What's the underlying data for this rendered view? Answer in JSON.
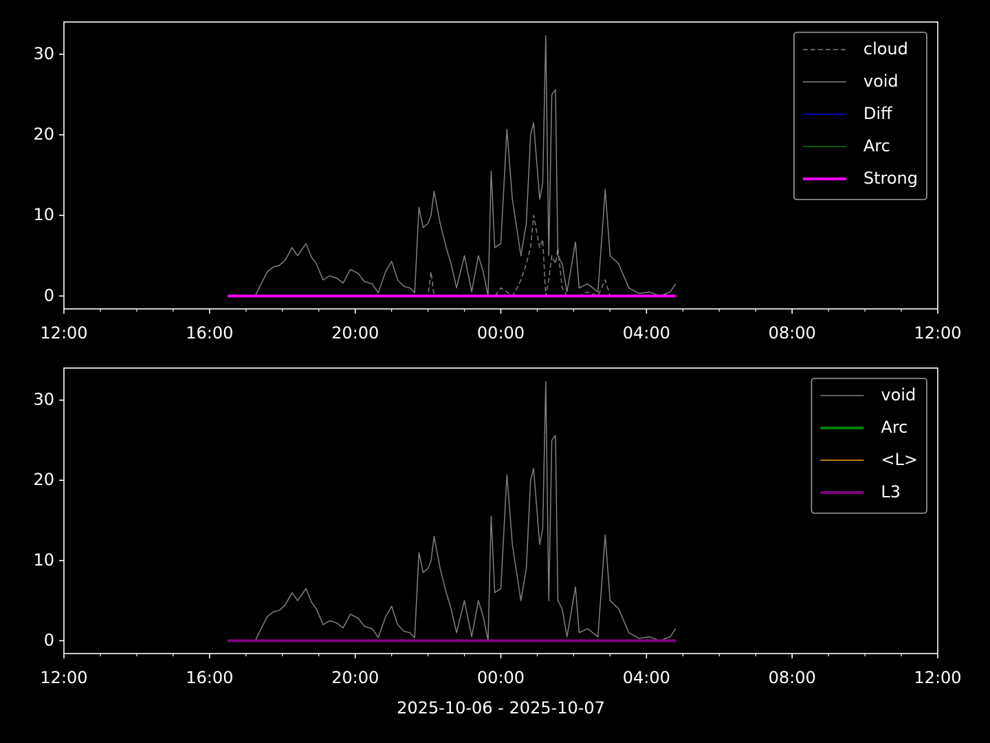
{
  "chart_data": [
    {
      "type": "line",
      "x": [
        "2025-10-06T16:30",
        "2025-10-06T17:15",
        "2025-10-06T17:25",
        "2025-10-06T17:35",
        "2025-10-06T17:45",
        "2025-10-06T17:55",
        "2025-10-06T18:05",
        "2025-10-06T18:16",
        "2025-10-06T18:25",
        "2025-10-06T18:39",
        "2025-10-06T18:48",
        "2025-10-06T18:56",
        "2025-10-06T19:07",
        "2025-10-06T19:18",
        "2025-10-06T19:30",
        "2025-10-06T19:40",
        "2025-10-06T19:52",
        "2025-10-06T20:05",
        "2025-10-06T20:15",
        "2025-10-06T20:28",
        "2025-10-06T20:38",
        "2025-10-06T20:50",
        "2025-10-06T21:00",
        "2025-10-06T21:10",
        "2025-10-06T21:20",
        "2025-10-06T21:30",
        "2025-10-06T21:38",
        "2025-10-06T21:45",
        "2025-10-06T21:52",
        "2025-10-06T22:00",
        "2025-10-06T22:05",
        "2025-10-06T22:10",
        "2025-10-06T22:20",
        "2025-10-06T22:30",
        "2025-10-06T22:38",
        "2025-10-06T22:47",
        "2025-10-06T23:00",
        "2025-10-06T23:12",
        "2025-10-06T23:23",
        "2025-10-06T23:31",
        "2025-10-06T23:39",
        "2025-10-06T23:44",
        "2025-10-06T23:50",
        "2025-10-07T00:00",
        "2025-10-07T00:10",
        "2025-10-07T00:19",
        "2025-10-07T00:27",
        "2025-10-07T00:33",
        "2025-10-07T00:42",
        "2025-10-07T00:49",
        "2025-10-07T00:54",
        "2025-10-07T01:04",
        "2025-10-07T01:09",
        "2025-10-07T01:14",
        "2025-10-07T01:19",
        "2025-10-07T01:24",
        "2025-10-07T01:30",
        "2025-10-07T01:34",
        "2025-10-07T01:41",
        "2025-10-07T01:49",
        "2025-10-07T02:03",
        "2025-10-07T02:09",
        "2025-10-07T02:23",
        "2025-10-07T02:40",
        "2025-10-07T02:52",
        "2025-10-07T03:00",
        "2025-10-07T03:14",
        "2025-10-07T03:31",
        "2025-10-07T03:48",
        "2025-10-07T04:05",
        "2025-10-07T04:22",
        "2025-10-07T04:39",
        "2025-10-07T04:48"
      ],
      "series": [
        {
          "name": "cloud",
          "color": "#808080",
          "linestyle": "dashed",
          "linewidth": 1.5,
          "values": [
            0,
            0,
            0,
            0,
            0,
            0,
            0,
            0,
            0,
            0,
            0,
            0,
            0,
            0,
            0,
            0,
            0,
            0,
            0,
            0,
            0,
            0,
            0,
            0,
            0,
            0,
            0,
            0,
            0,
            0,
            3,
            0,
            0,
            0,
            0,
            0,
            0,
            0,
            0,
            0,
            0,
            0,
            0,
            1,
            0.5,
            0,
            1,
            2,
            4,
            6,
            10,
            6,
            7,
            0,
            2,
            5,
            4,
            6,
            1,
            0,
            0,
            0,
            0.5,
            0,
            2,
            0,
            0,
            0,
            0,
            0,
            0,
            0,
            0
          ]
        },
        {
          "name": "void",
          "color": "#808080",
          "linewidth": 1.5,
          "values": [
            0,
            0,
            1.5,
            3,
            3.6,
            3.8,
            4.5,
            6,
            5,
            6.5,
            4.8,
            4,
            2,
            2.5,
            2.2,
            1.6,
            3.3,
            2.8,
            1.8,
            1.5,
            0.4,
            3,
            4.3,
            2,
            1.2,
            1,
            0.4,
            11,
            8.5,
            9,
            10,
            13,
            9,
            6,
            4,
            1,
            5,
            0.5,
            5,
            3,
            0,
            15.5,
            6,
            6.5,
            20.7,
            12,
            8,
            5,
            9,
            20,
            21.5,
            12,
            14,
            32.3,
            5,
            25,
            25.6,
            5,
            4,
            0.5,
            6.7,
            1,
            1.5,
            0.5,
            13.2,
            5,
            4,
            1,
            0.3,
            0.5,
            0,
            0.5,
            1.5
          ]
        },
        {
          "name": "Diff",
          "color": "#0000ff",
          "linewidth": 1.5,
          "x": [
            "2025-10-06T16:30",
            "2025-10-07T04:48"
          ],
          "values": [
            0,
            0
          ]
        },
        {
          "name": "Arc",
          "color": "#008000",
          "linewidth": 1.5,
          "x": [
            "2025-10-06T16:30",
            "2025-10-07T04:48"
          ],
          "values": [
            0,
            0
          ]
        },
        {
          "name": "Strong",
          "color": "#ff00ff",
          "linewidth": 4,
          "x": [
            "2025-10-06T16:30",
            "2025-10-07T04:48"
          ],
          "values": [
            0,
            0
          ]
        }
      ],
      "xlim": [
        "2025-10-06T12:00",
        "2025-10-07T12:00"
      ],
      "xticks": [
        {
          "value": "2025-10-06T12:00",
          "label": "12:00"
        },
        {
          "value": "2025-10-06T16:00",
          "label": "16:00"
        },
        {
          "value": "2025-10-06T20:00",
          "label": "20:00"
        },
        {
          "value": "2025-10-07T00:00",
          "label": "00:00"
        },
        {
          "value": "2025-10-07T04:00",
          "label": "04:00"
        },
        {
          "value": "2025-10-07T08:00",
          "label": "08:00"
        },
        {
          "value": "2025-10-07T12:00",
          "label": "12:00"
        }
      ],
      "xminorticks": [
        "2025-10-06T13:00",
        "2025-10-06T14:00",
        "2025-10-06T15:00",
        "2025-10-06T17:00",
        "2025-10-06T18:00",
        "2025-10-06T19:00",
        "2025-10-06T21:00",
        "2025-10-06T22:00",
        "2025-10-06T23:00",
        "2025-10-07T01:00",
        "2025-10-07T02:00",
        "2025-10-07T03:00",
        "2025-10-07T05:00",
        "2025-10-07T06:00",
        "2025-10-07T07:00",
        "2025-10-07T09:00",
        "2025-10-07T10:00",
        "2025-10-07T11:00"
      ],
      "ylim": [
        -1.6,
        34
      ],
      "yticks": [
        0,
        10,
        20,
        30
      ],
      "legend": "upper right"
    },
    {
      "type": "line",
      "x": [
        "2025-10-06T16:30",
        "2025-10-06T17:15",
        "2025-10-06T17:25",
        "2025-10-06T17:35",
        "2025-10-06T17:45",
        "2025-10-06T17:55",
        "2025-10-06T18:05",
        "2025-10-06T18:16",
        "2025-10-06T18:25",
        "2025-10-06T18:39",
        "2025-10-06T18:48",
        "2025-10-06T18:56",
        "2025-10-06T19:07",
        "2025-10-06T19:18",
        "2025-10-06T19:30",
        "2025-10-06T19:40",
        "2025-10-06T19:52",
        "2025-10-06T20:05",
        "2025-10-06T20:15",
        "2025-10-06T20:28",
        "2025-10-06T20:38",
        "2025-10-06T20:50",
        "2025-10-06T21:00",
        "2025-10-06T21:10",
        "2025-10-06T21:20",
        "2025-10-06T21:30",
        "2025-10-06T21:38",
        "2025-10-06T21:45",
        "2025-10-06T21:52",
        "2025-10-06T22:00",
        "2025-10-06T22:05",
        "2025-10-06T22:10",
        "2025-10-06T22:20",
        "2025-10-06T22:30",
        "2025-10-06T22:38",
        "2025-10-06T22:47",
        "2025-10-06T23:00",
        "2025-10-06T23:12",
        "2025-10-06T23:23",
        "2025-10-06T23:31",
        "2025-10-06T23:39",
        "2025-10-06T23:44",
        "2025-10-06T23:50",
        "2025-10-07T00:00",
        "2025-10-07T00:10",
        "2025-10-07T00:19",
        "2025-10-07T00:27",
        "2025-10-07T00:33",
        "2025-10-07T00:42",
        "2025-10-07T00:49",
        "2025-10-07T00:54",
        "2025-10-07T01:04",
        "2025-10-07T01:09",
        "2025-10-07T01:14",
        "2025-10-07T01:19",
        "2025-10-07T01:24",
        "2025-10-07T01:30",
        "2025-10-07T01:34",
        "2025-10-07T01:41",
        "2025-10-07T01:49",
        "2025-10-07T02:03",
        "2025-10-07T02:09",
        "2025-10-07T02:23",
        "2025-10-07T02:40",
        "2025-10-07T02:52",
        "2025-10-07T03:00",
        "2025-10-07T03:14",
        "2025-10-07T03:31",
        "2025-10-07T03:48",
        "2025-10-07T04:05",
        "2025-10-07T04:22",
        "2025-10-07T04:39",
        "2025-10-07T04:48"
      ],
      "series": [
        {
          "name": "void",
          "color": "#808080",
          "linewidth": 1.5,
          "values": [
            0,
            0,
            1.5,
            3,
            3.6,
            3.8,
            4.5,
            6,
            5,
            6.5,
            4.8,
            4,
            2,
            2.5,
            2.2,
            1.6,
            3.3,
            2.8,
            1.8,
            1.5,
            0.4,
            3,
            4.3,
            2,
            1.2,
            1,
            0.4,
            11,
            8.5,
            9,
            10,
            13,
            9,
            6,
            4,
            1,
            5,
            0.5,
            5,
            3,
            0,
            15.5,
            6,
            6.5,
            20.7,
            12,
            8,
            5,
            9,
            20,
            21.5,
            12,
            14,
            32.3,
            5,
            25,
            25.6,
            5,
            4,
            0.5,
            6.7,
            1,
            1.5,
            0.5,
            13.2,
            5,
            4,
            1,
            0.3,
            0.5,
            0,
            0.5,
            1.5
          ]
        },
        {
          "name": "Arc",
          "color": "#008000",
          "linewidth": 4,
          "x": [
            "2025-10-06T16:30",
            "2025-10-07T04:48"
          ],
          "values": [
            0,
            0
          ]
        },
        {
          "name": "<L>",
          "color": "#ffa500",
          "linewidth": 1.5,
          "x": [
            "2025-10-06T16:30",
            "2025-10-07T04:48"
          ],
          "values": [
            0,
            0
          ]
        },
        {
          "name": "L3",
          "color": "#800080",
          "linewidth": 4,
          "x": [
            "2025-10-06T16:30",
            "2025-10-07T04:48"
          ],
          "values": [
            0,
            0
          ]
        }
      ],
      "xlim": [
        "2025-10-06T12:00",
        "2025-10-07T12:00"
      ],
      "xticks": [
        {
          "value": "2025-10-06T12:00",
          "label": "12:00"
        },
        {
          "value": "2025-10-06T16:00",
          "label": "16:00"
        },
        {
          "value": "2025-10-06T20:00",
          "label": "20:00"
        },
        {
          "value": "2025-10-07T00:00",
          "label": "00:00"
        },
        {
          "value": "2025-10-07T04:00",
          "label": "04:00"
        },
        {
          "value": "2025-10-07T08:00",
          "label": "08:00"
        },
        {
          "value": "2025-10-07T12:00",
          "label": "12:00"
        }
      ],
      "xminorticks": [
        "2025-10-06T13:00",
        "2025-10-06T14:00",
        "2025-10-06T15:00",
        "2025-10-06T17:00",
        "2025-10-06T18:00",
        "2025-10-06T19:00",
        "2025-10-06T21:00",
        "2025-10-06T22:00",
        "2025-10-06T23:00",
        "2025-10-07T01:00",
        "2025-10-07T02:00",
        "2025-10-07T03:00",
        "2025-10-07T05:00",
        "2025-10-07T06:00",
        "2025-10-07T07:00",
        "2025-10-07T09:00",
        "2025-10-07T10:00",
        "2025-10-07T11:00"
      ],
      "ylim": [
        -1.6,
        34
      ],
      "yticks": [
        0,
        10,
        20,
        30
      ],
      "legend": "upper right",
      "xlabel": "2025-10-06 - 2025-10-07"
    }
  ]
}
